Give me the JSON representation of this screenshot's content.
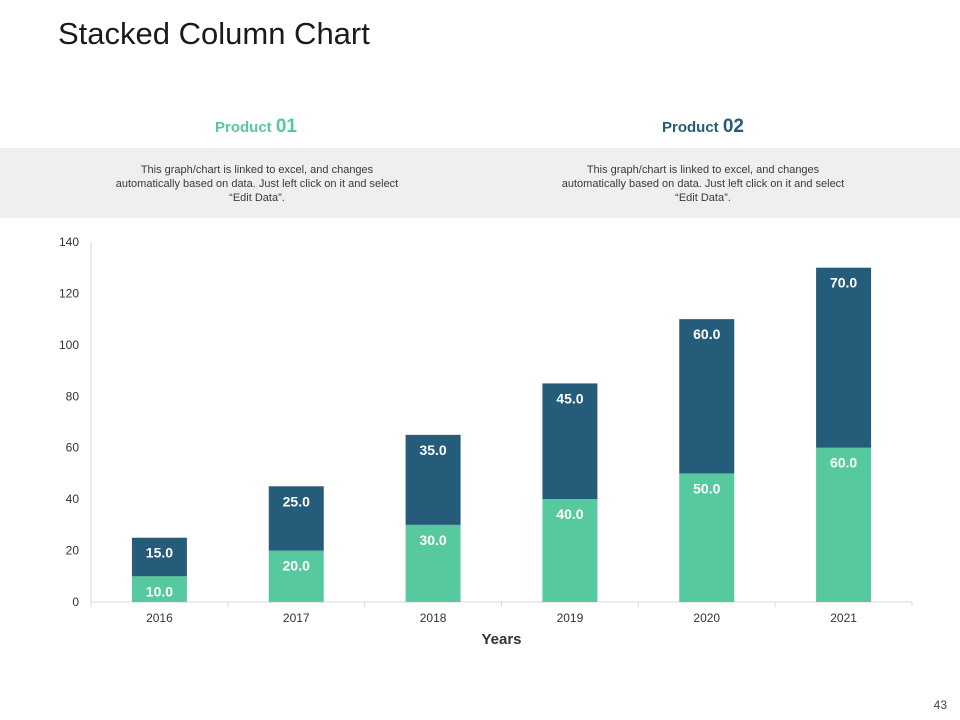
{
  "slide": {
    "title": "Stacked Column Chart",
    "page_number": "43"
  },
  "legend": [
    {
      "label": "Product",
      "number": "01",
      "color": "#56c99e"
    },
    {
      "label": "Product",
      "number": "02",
      "color": "#255c7a"
    }
  ],
  "descriptions": [
    "This graph/chart is linked to excel, and changes automatically based on data. Just left click on it and select “Edit Data”.",
    "This graph/chart is linked to excel, and changes automatically based on data. Just left click on it and select “Edit Data”."
  ],
  "chart_data": {
    "type": "bar",
    "stacked": true,
    "title": "",
    "xlabel": "Years",
    "ylabel": "",
    "categories": [
      "2016",
      "2017",
      "2018",
      "2019",
      "2020",
      "2021"
    ],
    "series": [
      {
        "name": "Product 01",
        "color": "#56c99e",
        "values": [
          10.0,
          20.0,
          30.0,
          40.0,
          50.0,
          60.0
        ]
      },
      {
        "name": "Product 02",
        "color": "#255c7a",
        "values": [
          15.0,
          25.0,
          35.0,
          45.0,
          60.0,
          70.0
        ]
      }
    ],
    "ylim": [
      0,
      140
    ],
    "yticks": [
      0,
      20,
      40,
      60,
      80,
      100,
      120,
      140
    ],
    "grid": false,
    "legend": "top"
  }
}
